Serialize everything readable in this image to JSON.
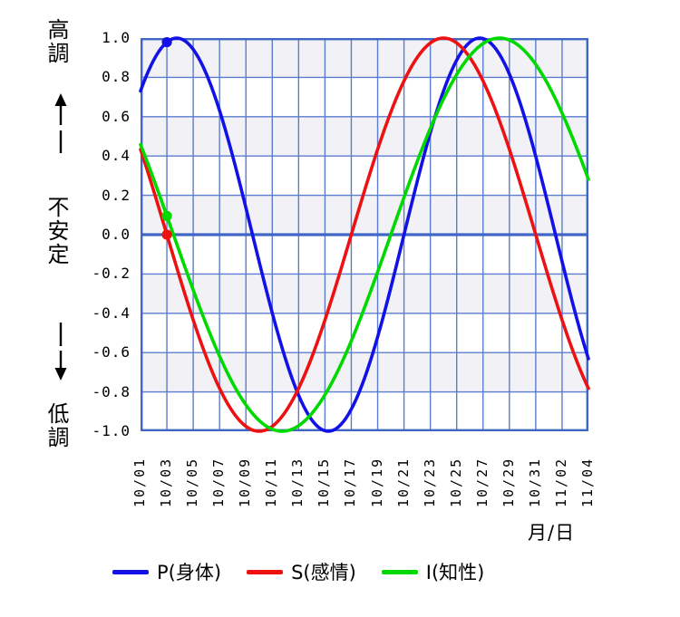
{
  "side_labels": {
    "high": "高調",
    "middle": "不安定",
    "bottom": "低調"
  },
  "x_axis": {
    "title": "月/日"
  },
  "colors": {
    "physical": "#1212e6",
    "emotional": "#ee1111",
    "intellectual": "#00d900",
    "grid": "#5b7cd0",
    "axis": "#4066c6",
    "band": "#f1f1f6",
    "text": "#000000"
  },
  "chart_data": {
    "type": "line",
    "title": "",
    "xlabel": "月/日",
    "ylabel": "",
    "ylim": [
      -1.0,
      1.0
    ],
    "grid": true,
    "zero_line": true,
    "legend_position": "bottom",
    "y_tick_labels": [
      "1.0",
      "0.8",
      "0.6",
      "0.4",
      "0.2",
      "0.0",
      "-0.2",
      "-0.4",
      "-0.6",
      "-0.8",
      "-1.0"
    ],
    "x_tick_labels": [
      "10/01",
      "10/03",
      "10/05",
      "10/07",
      "10/09",
      "10/11",
      "10/13",
      "10/15",
      "10/17",
      "10/19",
      "10/21",
      "10/23",
      "10/25",
      "10/27",
      "10/29",
      "10/31",
      "11/02",
      "11/04"
    ],
    "x_span_days": 34,
    "tick_step_days": 2,
    "y_axis_annotations": [
      "高調",
      "不安定",
      "低調"
    ],
    "marker_date": "10/03",
    "marker_day_index": 2,
    "series": [
      {
        "key": "physical",
        "legend_label": "P(身体)",
        "color": "#1212e6",
        "period_days": 23,
        "phase_days": 3,
        "marker_value": 0.98,
        "values_at_ticks": [
          0.73,
          0.98,
          0.94,
          0.63,
          0.14,
          -0.4,
          -0.82,
          -1.0,
          -0.89,
          -0.52,
          0.0,
          0.52,
          0.89,
          1.0,
          0.82,
          0.4,
          -0.14,
          -0.63
        ]
      },
      {
        "key": "emotional",
        "legend_label": "S(感情)",
        "color": "#ee1111",
        "period_days": 28,
        "phase_days": 12,
        "marker_value": 0.0,
        "values_at_ticks": [
          0.43,
          0.0,
          -0.43,
          -0.78,
          -0.97,
          -0.97,
          -0.78,
          -0.43,
          0.0,
          0.43,
          0.78,
          0.97,
          0.97,
          0.78,
          0.43,
          0.0,
          -0.43,
          -0.78
        ]
      },
      {
        "key": "intellectual",
        "legend_label": "I(知性)",
        "color": "#00d900",
        "period_days": 33,
        "phase_days": 14,
        "marker_value": 0.1,
        "values_at_ticks": [
          0.46,
          0.09,
          -0.28,
          -0.62,
          -0.87,
          -0.99,
          -0.97,
          -0.81,
          -0.54,
          -0.19,
          0.19,
          0.54,
          0.81,
          0.97,
          0.99,
          0.87,
          0.62,
          0.28
        ]
      }
    ]
  }
}
